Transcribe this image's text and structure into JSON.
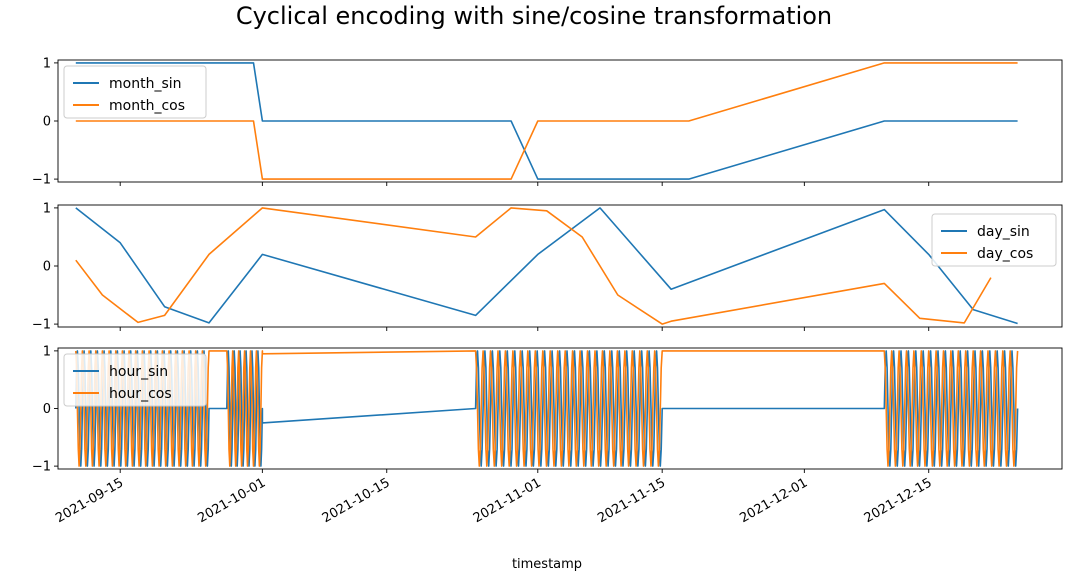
{
  "chart_data": {
    "type": "line",
    "title": "Cyclical encoding with sine/cosine transformation",
    "xlabel": "timestamp",
    "x_range": [
      "2021-09-08",
      "2021-12-30"
    ],
    "x_ticks": [
      "2021-09-15",
      "2021-10-01",
      "2021-10-15",
      "2021-11-01",
      "2021-11-15",
      "2021-12-01",
      "2021-12-15"
    ],
    "colors": {
      "sin": "#1f77b4",
      "cos": "#ff7f0e"
    },
    "panels": [
      {
        "ylim": [
          -1.05,
          1.05
        ],
        "yticks": [
          1,
          0,
          -1
        ],
        "ytick_labels": [
          "1",
          "0",
          "−1"
        ],
        "legend_position": "upper left",
        "series": [
          {
            "name": "month_sin",
            "color": "#1f77b4",
            "x": [
              "2021-09-10",
              "2021-09-30",
              "2021-10-01",
              "2021-10-29",
              "2021-11-01",
              "2021-11-18",
              "2021-12-10",
              "2021-12-25"
            ],
            "y": [
              1,
              1,
              0,
              0,
              -1,
              -1,
              0,
              0
            ]
          },
          {
            "name": "month_cos",
            "color": "#ff7f0e",
            "x": [
              "2021-09-10",
              "2021-09-30",
              "2021-10-01",
              "2021-10-29",
              "2021-11-01",
              "2021-11-18",
              "2021-12-10",
              "2021-12-25"
            ],
            "y": [
              0,
              0,
              -1,
              -1,
              0,
              0,
              1,
              1
            ]
          }
        ]
      },
      {
        "ylim": [
          -1.05,
          1.05
        ],
        "yticks": [
          1,
          0,
          -1
        ],
        "ytick_labels": [
          "1",
          "0",
          "−1"
        ],
        "legend_position": "right",
        "series": [
          {
            "name": "day_sin",
            "color": "#1f77b4",
            "x": [
              "2021-09-10",
              "2021-09-15",
              "2021-09-20",
              "2021-09-25",
              "2021-10-01",
              "2021-10-25",
              "2021-11-01",
              "2021-11-08",
              "2021-11-16",
              "2021-12-10",
              "2021-12-15",
              "2021-12-20",
              "2021-12-25"
            ],
            "y": [
              1.0,
              0.4,
              -0.7,
              -0.98,
              0.2,
              -0.85,
              0.2,
              1.0,
              -0.4,
              0.97,
              0.2,
              -0.75,
              -0.99
            ]
          },
          {
            "name": "day_cos",
            "color": "#ff7f0e",
            "x": [
              "2021-09-10",
              "2021-09-13",
              "2021-09-17",
              "2021-09-20",
              "2021-09-25",
              "2021-10-01",
              "2021-10-25",
              "2021-10-29",
              "2021-11-02",
              "2021-11-06",
              "2021-11-10",
              "2021-11-15",
              "2021-11-16",
              "2021-12-10",
              "2021-12-14",
              "2021-12-19",
              "2021-12-22"
            ],
            "y": [
              0.1,
              -0.5,
              -0.97,
              -0.85,
              0.2,
              1.0,
              0.5,
              1.0,
              0.95,
              0.5,
              -0.5,
              -1.0,
              -0.95,
              -0.3,
              -0.9,
              -0.98,
              -0.2
            ]
          }
        ]
      },
      {
        "ylim": [
          -1.05,
          1.05
        ],
        "yticks": [
          1,
          0,
          -1
        ],
        "ytick_labels": [
          "1",
          "0",
          "−1"
        ],
        "legend_position": "upper left",
        "series": [
          {
            "name": "hour_sin",
            "color": "#1f77b4",
            "segments": [
              {
                "start": "2021-09-10",
                "end": "2021-09-25",
                "cycles": 20
              },
              {
                "start": "2021-09-27",
                "end": "2021-10-01",
                "cycles": 6
              },
              {
                "start": "2021-10-25",
                "end": "2021-11-15",
                "cycles": 25
              },
              {
                "start": "2021-12-10",
                "end": "2021-12-25",
                "cycles": 18
              }
            ],
            "gaps": [
              {
                "x": [
                  "2021-10-01",
                  "2021-10-25"
                ],
                "y": [
                  -0.25,
                  0.0
                ]
              },
              {
                "x": [
                  "2021-11-16",
                  "2021-12-10"
                ],
                "y": [
                  -0.25,
                  0.0
                ]
              }
            ]
          },
          {
            "name": "hour_cos",
            "color": "#ff7f0e",
            "segments": [
              {
                "start": "2021-09-10",
                "end": "2021-09-25",
                "cycles": 20
              },
              {
                "start": "2021-09-27",
                "end": "2021-10-01",
                "cycles": 6
              },
              {
                "start": "2021-10-25",
                "end": "2021-11-15",
                "cycles": 25
              },
              {
                "start": "2021-12-10",
                "end": "2021-12-25",
                "cycles": 18
              }
            ],
            "gaps": [
              {
                "x": [
                  "2021-10-01",
                  "2021-10-25"
                ],
                "y": [
                  0.95,
                  1.0
                ]
              },
              {
                "x": [
                  "2021-11-16",
                  "2021-12-10"
                ],
                "y": [
                  0.95,
                  1.0
                ]
              }
            ]
          }
        ]
      }
    ]
  }
}
